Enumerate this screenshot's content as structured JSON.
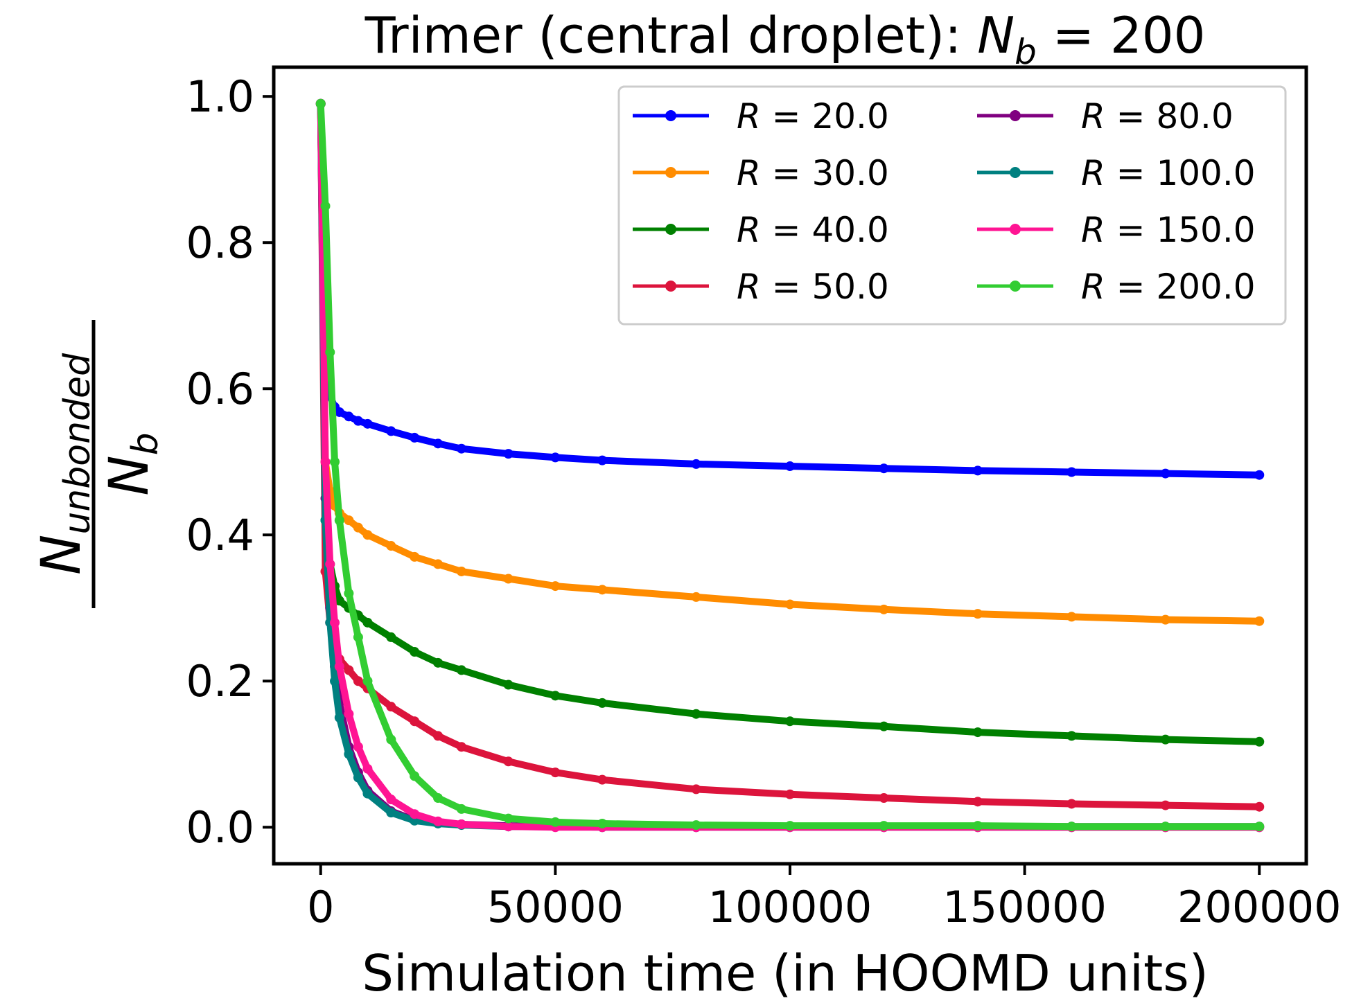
{
  "chart_data": {
    "type": "line",
    "title": "Trimer (central droplet): N_b = 200",
    "title_parts": {
      "prefix": "Trimer (central droplet): ",
      "var": "N",
      "sub": "b",
      "suffix": " = 200"
    },
    "xlabel": "Simulation time (in HOOMD units)",
    "ylabel": "N_unbonded / N_b",
    "ylabel_parts": {
      "num_var": "N",
      "num_sub": "unbonded",
      "den_var": "N",
      "den_sub": "b"
    },
    "xlim": [
      -10000,
      210000
    ],
    "ylim": [
      -0.05,
      1.04
    ],
    "xticks": [
      "0",
      "50000",
      "100000",
      "150000",
      "200000"
    ],
    "yticks": [
      "0.0",
      "0.2",
      "0.4",
      "0.6",
      "0.8",
      "1.0"
    ],
    "legend": {
      "position": "top-right",
      "columns": 2
    },
    "x": [
      0,
      1000,
      2000,
      3000,
      4000,
      6000,
      8000,
      10000,
      15000,
      20000,
      25000,
      30000,
      40000,
      50000,
      60000,
      80000,
      100000,
      120000,
      140000,
      160000,
      180000,
      200000
    ],
    "series": [
      {
        "name": "R = 20.0",
        "label_var": "R",
        "label_num": "20.0",
        "color": "#0000ff",
        "values": [
          0.99,
          0.62,
          0.59,
          0.575,
          0.568,
          0.562,
          0.556,
          0.552,
          0.542,
          0.533,
          0.525,
          0.518,
          0.511,
          0.506,
          0.502,
          0.497,
          0.494,
          0.491,
          0.488,
          0.486,
          0.484,
          0.482
        ]
      },
      {
        "name": "R = 30.0",
        "label_var": "R",
        "label_num": "30.0",
        "color": "#ff8c00",
        "values": [
          0.99,
          0.5,
          0.46,
          0.44,
          0.43,
          0.42,
          0.41,
          0.4,
          0.385,
          0.37,
          0.36,
          0.35,
          0.34,
          0.33,
          0.325,
          0.315,
          0.305,
          0.298,
          0.292,
          0.288,
          0.284,
          0.282
        ]
      },
      {
        "name": "R = 40.0",
        "label_var": "R",
        "label_num": "40.0",
        "color": "#008000",
        "values": [
          0.99,
          0.42,
          0.36,
          0.33,
          0.31,
          0.3,
          0.29,
          0.28,
          0.26,
          0.24,
          0.225,
          0.215,
          0.195,
          0.18,
          0.17,
          0.155,
          0.145,
          0.138,
          0.13,
          0.125,
          0.12,
          0.117
        ]
      },
      {
        "name": "R = 50.0",
        "label_var": "R",
        "label_num": "50.0",
        "color": "#dc143c",
        "values": [
          0.99,
          0.35,
          0.28,
          0.25,
          0.23,
          0.215,
          0.2,
          0.19,
          0.165,
          0.145,
          0.125,
          0.11,
          0.09,
          0.075,
          0.065,
          0.052,
          0.045,
          0.04,
          0.035,
          0.032,
          0.03,
          0.028
        ]
      },
      {
        "name": "R = 80.0",
        "label_var": "R",
        "label_num": "80.0",
        "color": "#800080",
        "values": [
          0.99,
          0.45,
          0.3,
          0.22,
          0.17,
          0.11,
          0.075,
          0.05,
          0.022,
          0.01,
          0.006,
          0.004,
          0.002,
          0.001,
          0.001,
          0.001,
          0.001,
          0.001,
          0.001,
          0.001,
          0.001,
          0.001
        ]
      },
      {
        "name": "R = 100.0",
        "label_var": "R",
        "label_num": "100.0",
        "color": "#008080",
        "values": [
          0.99,
          0.42,
          0.28,
          0.2,
          0.15,
          0.1,
          0.068,
          0.046,
          0.02,
          0.009,
          0.005,
          0.003,
          0.001,
          0.001,
          0.0,
          0.0,
          0.0,
          0.0,
          0.0,
          0.0,
          0.0,
          0.0
        ]
      },
      {
        "name": "R = 150.0",
        "label_var": "R",
        "label_num": "150.0",
        "color": "#ff1493",
        "values": [
          0.99,
          0.5,
          0.36,
          0.28,
          0.22,
          0.155,
          0.11,
          0.08,
          0.038,
          0.018,
          0.008,
          0.004,
          0.001,
          0.0,
          0.0,
          0.0,
          0.0,
          0.0,
          0.0,
          0.0,
          0.0,
          0.0
        ]
      },
      {
        "name": "R = 200.0",
        "label_var": "R",
        "label_num": "200.0",
        "color": "#32cd32",
        "values": [
          0.99,
          0.85,
          0.65,
          0.5,
          0.42,
          0.32,
          0.26,
          0.2,
          0.12,
          0.07,
          0.04,
          0.025,
          0.012,
          0.007,
          0.005,
          0.003,
          0.002,
          0.002,
          0.002,
          0.001,
          0.001,
          0.001
        ]
      }
    ]
  }
}
